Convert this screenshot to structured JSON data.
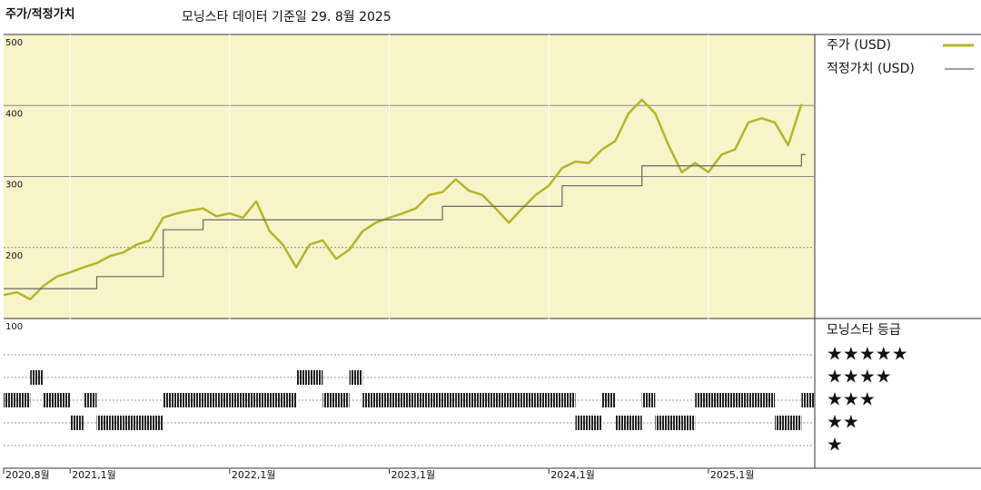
{
  "chart_data": {
    "type": "line",
    "title": "주가/적정가치",
    "subtitle": "모닝스타 데이터 기준일 29. 8월 2025",
    "x": [
      "2020-08",
      "2020-09",
      "2020-10",
      "2020-11",
      "2020-12",
      "2021-01",
      "2021-02",
      "2021-03",
      "2021-04",
      "2021-05",
      "2021-06",
      "2021-07",
      "2021-08",
      "2021-09",
      "2021-10",
      "2021-11",
      "2021-12",
      "2022-01",
      "2022-02",
      "2022-03",
      "2022-04",
      "2022-05",
      "2022-06",
      "2022-07",
      "2022-08",
      "2022-09",
      "2022-10",
      "2022-11",
      "2022-12",
      "2023-01",
      "2023-02",
      "2023-03",
      "2023-04",
      "2023-05",
      "2023-06",
      "2023-07",
      "2023-08",
      "2023-09",
      "2023-10",
      "2023-11",
      "2023-12",
      "2024-01",
      "2024-02",
      "2024-03",
      "2024-04",
      "2024-05",
      "2024-06",
      "2024-07",
      "2024-08",
      "2024-09",
      "2024-10",
      "2024-11",
      "2024-12",
      "2025-01",
      "2025-02",
      "2025-03",
      "2025-04",
      "2025-05",
      "2025-06",
      "2025-07",
      "2025-08"
    ],
    "xlim": [
      "2020-08",
      "2025-09"
    ],
    "xticks": [
      {
        "value": "2020-08",
        "label": "2020,8월"
      },
      {
        "value": "2021-01",
        "label": "2021,1월"
      },
      {
        "value": "2022-01",
        "label": "2022,1월"
      },
      {
        "value": "2023-01",
        "label": "2023,1월"
      },
      {
        "value": "2024-01",
        "label": "2024,1월"
      },
      {
        "value": "2025-01",
        "label": "2025,1월"
      }
    ],
    "ylim": [
      100,
      500
    ],
    "yticks": [
      100,
      200,
      300,
      400,
      500
    ],
    "series": [
      {
        "name": "주가 (USD)",
        "color": "#b3b52b",
        "values": [
          133,
          137,
          127,
          146,
          159,
          165,
          172,
          178,
          188,
          193,
          204,
          210,
          242,
          248,
          252,
          255,
          244,
          248,
          242,
          265,
          223,
          204,
          172,
          204,
          210,
          184,
          197,
          223,
          235,
          242,
          248,
          255,
          274,
          278,
          296,
          280,
          274,
          255,
          235,
          255,
          274,
          287,
          312,
          321,
          319,
          338,
          350,
          389,
          408,
          389,
          344,
          306,
          319,
          306,
          331,
          338,
          376,
          382,
          376,
          344,
          402
        ]
      },
      {
        "name": "적정가치 (USD)",
        "color": "#666666",
        "step": true,
        "values": [
          142,
          142,
          142,
          142,
          142,
          142,
          142,
          159,
          159,
          159,
          159,
          159,
          225,
          225,
          225,
          239,
          239,
          239,
          239,
          239,
          239,
          239,
          239,
          239,
          239,
          239,
          239,
          239,
          239,
          239,
          239,
          239,
          239,
          258,
          258,
          258,
          258,
          258,
          258,
          258,
          258,
          258,
          287,
          287,
          287,
          287,
          287,
          287,
          315,
          315,
          315,
          315,
          315,
          315,
          315,
          315,
          315,
          315,
          315,
          315,
          331
        ]
      }
    ],
    "rating": {
      "title": "모닝스타 등급",
      "levels": [
        "★",
        "★★",
        "★★★",
        "★★★★",
        "★★★★★"
      ],
      "values": [
        3,
        3,
        4,
        3,
        3,
        2,
        3,
        2,
        2,
        2,
        2,
        2,
        3,
        3,
        3,
        3,
        3,
        3,
        3,
        3,
        3,
        3,
        4,
        4,
        3,
        3,
        4,
        3,
        3,
        3,
        3,
        3,
        3,
        3,
        3,
        3,
        3,
        3,
        3,
        3,
        3,
        3,
        3,
        2,
        2,
        3,
        2,
        2,
        3,
        2,
        2,
        2,
        3,
        3,
        3,
        3,
        3,
        3,
        2,
        2,
        3
      ]
    }
  }
}
